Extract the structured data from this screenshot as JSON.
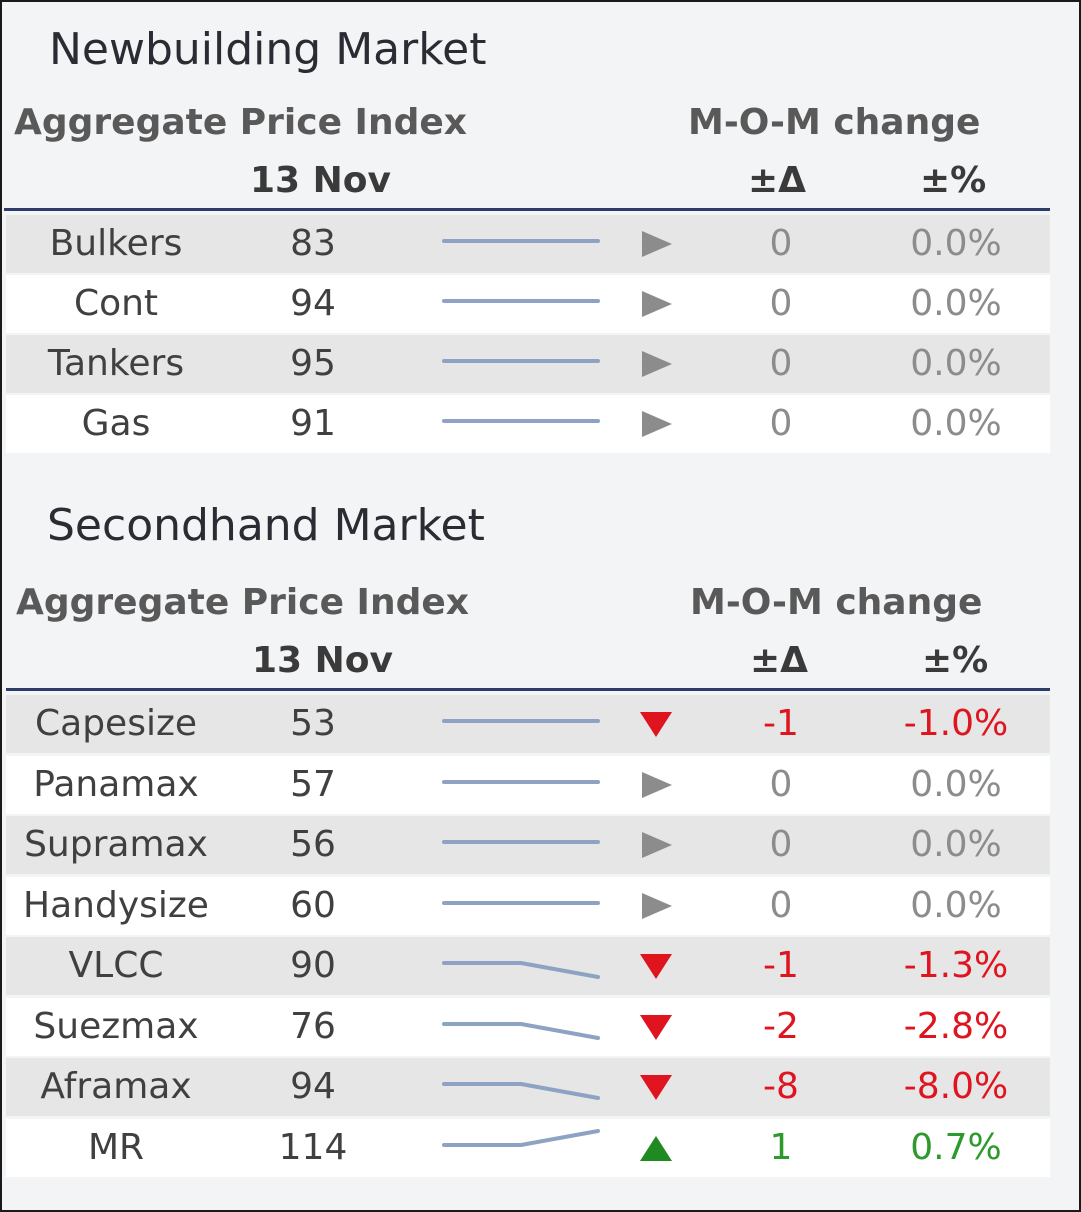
{
  "newbuilding": {
    "title": "Newbuilding Market",
    "index_label": "Aggregate Price Index",
    "date_label": "13 Nov",
    "change_label": "M-O-M change",
    "delta_label": "±Δ",
    "pct_label": "±%",
    "rows": [
      {
        "name": "Bulkers",
        "value": "83",
        "trend": [
          0,
          0,
          0
        ],
        "direction": "flat",
        "delta": "0",
        "pct": "0.0%"
      },
      {
        "name": "Cont",
        "value": "94",
        "trend": [
          0,
          0,
          0
        ],
        "direction": "flat",
        "delta": "0",
        "pct": "0.0%"
      },
      {
        "name": "Tankers",
        "value": "95",
        "trend": [
          0,
          0,
          0
        ],
        "direction": "flat",
        "delta": "0",
        "pct": "0.0%"
      },
      {
        "name": "Gas",
        "value": "91",
        "trend": [
          0,
          0,
          0
        ],
        "direction": "flat",
        "delta": "0",
        "pct": "0.0%"
      }
    ]
  },
  "secondhand": {
    "title": "Secondhand Market",
    "index_label": "Aggregate Price Index",
    "date_label": "13 Nov",
    "change_label": "M-O-M change",
    "delta_label": "±Δ",
    "pct_label": "±%",
    "rows": [
      {
        "name": "Capesize",
        "value": "53",
        "trend": [
          0,
          0,
          0
        ],
        "direction": "down",
        "delta": "-1",
        "pct": "-1.0%"
      },
      {
        "name": "Panamax",
        "value": "57",
        "trend": [
          0,
          0,
          0
        ],
        "direction": "flat",
        "delta": "0",
        "pct": "0.0%"
      },
      {
        "name": "Supramax",
        "value": "56",
        "trend": [
          0,
          0,
          0
        ],
        "direction": "flat",
        "delta": "0",
        "pct": "0.0%"
      },
      {
        "name": "Handysize",
        "value": "60",
        "trend": [
          0,
          0,
          0
        ],
        "direction": "flat",
        "delta": "0",
        "pct": "0.0%"
      },
      {
        "name": "VLCC",
        "value": "90",
        "trend": [
          0,
          0,
          -1
        ],
        "direction": "down",
        "delta": "-1",
        "pct": "-1.3%"
      },
      {
        "name": "Suezmax",
        "value": "76",
        "trend": [
          0,
          0,
          -1
        ],
        "direction": "down",
        "delta": "-2",
        "pct": "-2.8%"
      },
      {
        "name": "Aframax",
        "value": "94",
        "trend": [
          0,
          0,
          -1
        ],
        "direction": "down",
        "delta": "-8",
        "pct": "-8.0%"
      },
      {
        "name": "MR",
        "value": "114",
        "trend": [
          0,
          0,
          1
        ],
        "direction": "up",
        "delta": "1",
        "pct": "0.7%"
      }
    ]
  },
  "colors": {
    "rule": "#2d3c69",
    "sparkline": "#8ea3c4",
    "flat_arrow": "#8c8c8c",
    "down": "#e0141e",
    "up": "#1f8a1f"
  }
}
